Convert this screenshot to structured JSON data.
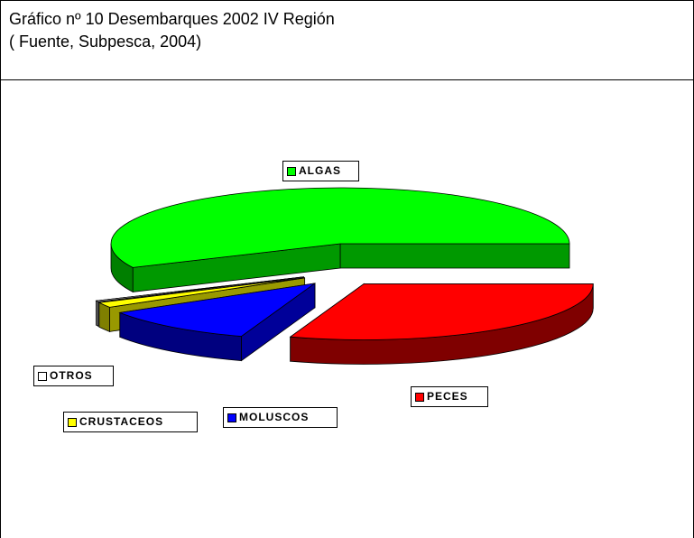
{
  "chart_data": {
    "type": "pie3d",
    "title": "Gráfico nº 10 Desembarques 2002 IV Región",
    "subtitle": "( Fuente, Subpesca, 2004)",
    "categories": [
      "ALGAS",
      "OTROS",
      "CRUSTACEOS",
      "MOLUSCOS",
      "PECES"
    ],
    "values": [
      57,
      0.3,
      1.5,
      11,
      30.2
    ],
    "colors": [
      "#00ff00",
      "#ffffff",
      "#ffff00",
      "#0000ff",
      "#ff0000"
    ],
    "legend": "labels"
  }
}
